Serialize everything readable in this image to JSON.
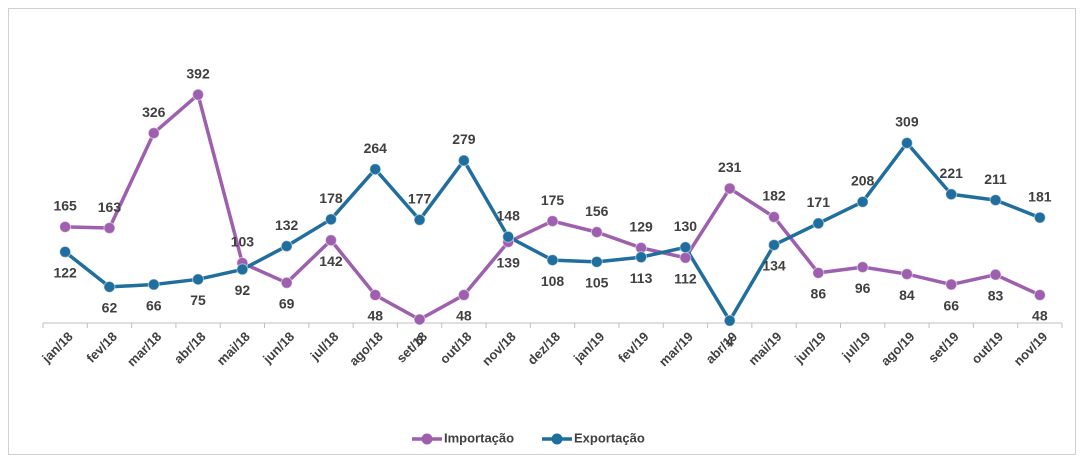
{
  "chart_data": {
    "type": "line",
    "categories": [
      "jan/18",
      "fev/18",
      "mar/18",
      "abr/18",
      "mai/18",
      "jun/18",
      "jul/18",
      "ago/18",
      "set/18",
      "out/18",
      "nov/18",
      "dez/18",
      "jan/19",
      "fev/19",
      "mar/19",
      "abr/19",
      "mai/19",
      "jun/19",
      "jul/19",
      "ago/19",
      "set/19",
      "out/19",
      "nov/19"
    ],
    "series": [
      {
        "name": "Importação",
        "color": "#9e5fae",
        "values": [
          165,
          163,
          326,
          392,
          103,
          69,
          142,
          48,
          6,
          48,
          139,
          175,
          156,
          129,
          112,
          231,
          182,
          86,
          96,
          84,
          66,
          83,
          48
        ]
      },
      {
        "name": "Exportação",
        "color": "#1f6e9e",
        "values": [
          122,
          62,
          66,
          75,
          92,
          132,
          178,
          264,
          177,
          279,
          148,
          108,
          105,
          113,
          130,
          4,
          134,
          171,
          208,
          309,
          221,
          211,
          181
        ]
      }
    ],
    "ylim": [
      0,
      400
    ],
    "legend": "bottom"
  }
}
